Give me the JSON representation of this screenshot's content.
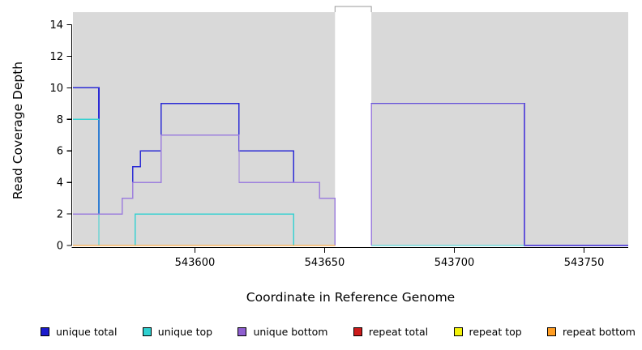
{
  "chart_data": {
    "type": "line",
    "variant": "step-coverage",
    "title": "",
    "xlabel": "Coordinate in Reference Genome",
    "ylabel": "Read Coverage Depth",
    "xlim": [
      543553,
      543767
    ],
    "ylim": [
      0,
      14.8
    ],
    "xticks": [
      543600,
      543650,
      543700,
      543750
    ],
    "yticks": [
      0,
      2,
      4,
      6,
      8,
      10,
      12,
      14
    ],
    "grid": false,
    "panel_bg": "#d9d9d9",
    "gap_region": {
      "start": 543654,
      "end": 543668,
      "cap_color": "#999999"
    },
    "series": [
      {
        "name": "unique total",
        "color": "#2b2bd5",
        "width": 1.6,
        "segments": [
          [
            543553,
            543563,
            10
          ],
          [
            543563,
            543572,
            2
          ],
          [
            543572,
            543576,
            3
          ],
          [
            543576,
            543579,
            5
          ],
          [
            543579,
            543587,
            6
          ],
          [
            543587,
            543617,
            9
          ],
          [
            543617,
            543638,
            6
          ],
          [
            543638,
            543648,
            4
          ],
          [
            543648,
            543654,
            3
          ],
          [
            543654,
            543654,
            0
          ],
          null,
          [
            543668,
            543668,
            0
          ],
          [
            543668,
            543727,
            9
          ],
          [
            543727,
            543767,
            0
          ]
        ]
      },
      {
        "name": "unique top",
        "color": "#3ad1d1",
        "width": 1.3,
        "segments": [
          [
            543553,
            543563,
            8
          ],
          [
            543563,
            543577,
            0
          ],
          [
            543577,
            543638,
            2
          ],
          [
            543638,
            543654,
            0
          ],
          null,
          [
            543668,
            543767,
            0
          ]
        ]
      },
      {
        "name": "unique bottom",
        "color": "#9d7fdd",
        "width": 1.3,
        "segments": [
          [
            543553,
            543572,
            2
          ],
          [
            543572,
            543576,
            3
          ],
          [
            543576,
            543587,
            4
          ],
          [
            543587,
            543617,
            7
          ],
          [
            543617,
            543648,
            4
          ],
          [
            543648,
            543654,
            3
          ],
          [
            543654,
            543654,
            0
          ],
          null,
          [
            543668,
            543668,
            0
          ],
          [
            543668,
            543727,
            9
          ],
          [
            543727,
            543767,
            0
          ]
        ]
      },
      {
        "name": "repeat total",
        "color": "#cc1f1f",
        "width": 1.2,
        "segments": [
          [
            543553,
            543654,
            0
          ]
        ]
      },
      {
        "name": "repeat top",
        "color": "#f7f700",
        "width": 1.2,
        "segments": [
          [
            543553,
            543654,
            0
          ]
        ]
      },
      {
        "name": "repeat bottom",
        "color": "#ff9d23",
        "width": 1.2,
        "segments": [
          [
            543553,
            543654,
            0
          ]
        ]
      }
    ],
    "legend": [
      {
        "label": "unique total",
        "color": "#1b1bcc"
      },
      {
        "label": "unique top",
        "color": "#2fd0d0"
      },
      {
        "label": "unique bottom",
        "color": "#8f5fd0"
      },
      {
        "label": "repeat total",
        "color": "#cc1b1b"
      },
      {
        "label": "repeat top",
        "color": "#f2f20a"
      },
      {
        "label": "repeat bottom",
        "color": "#ff9d23"
      }
    ],
    "legend_position": "bottom"
  }
}
